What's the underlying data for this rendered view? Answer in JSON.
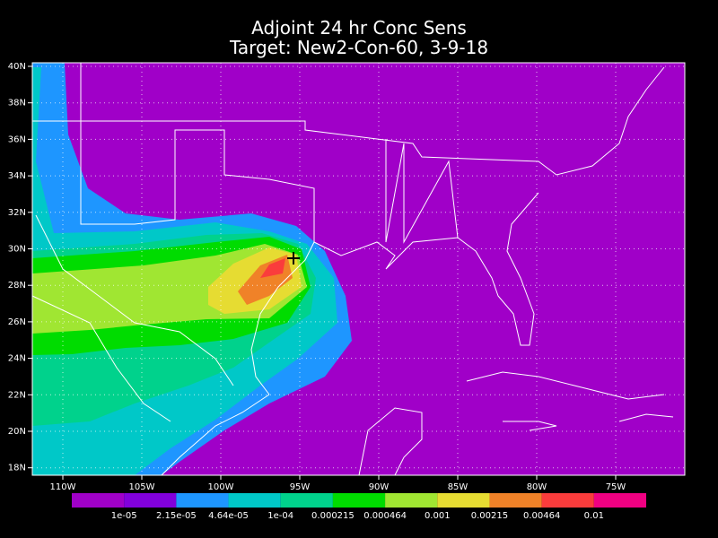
{
  "title": [
    "Adjoint 24 hr Conc Sens",
    "Target: New2-Con-60, 3-9-18"
  ],
  "x_axis": {
    "labels": [
      "110W",
      "105W",
      "100W",
      "95W",
      "90W",
      "85W",
      "80W",
      "75W"
    ]
  },
  "y_axis": {
    "labels": [
      "40N",
      "38N",
      "36N",
      "34N",
      "32N",
      "30N",
      "28N",
      "26N",
      "24N",
      "22N",
      "20N",
      "18N"
    ]
  },
  "colorbar": {
    "colors": [
      "#a000c8",
      "#8200dc",
      "#1e96ff",
      "#00c8c8",
      "#00d28c",
      "#00dc00",
      "#a0e632",
      "#e6dc32",
      "#f08228",
      "#fa3c3c",
      "#f00082"
    ],
    "labels": [
      "1e-05",
      "2.15e-05",
      "4.64e-05",
      "1e-04",
      "0.000215",
      "0.000464",
      "0.001",
      "0.00215",
      "0.00464",
      "0.01"
    ]
  }
}
